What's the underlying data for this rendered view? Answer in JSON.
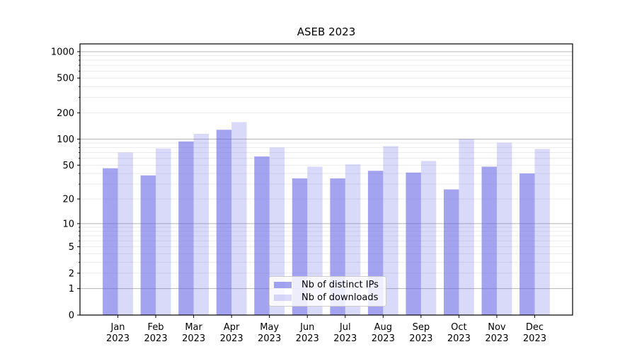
{
  "chart_data": {
    "type": "bar",
    "title": "ASEB 2023",
    "categories": [
      "Jan 2023",
      "Feb 2023",
      "Mar 2023",
      "Apr 2023",
      "May 2023",
      "Jun 2023",
      "Jul 2023",
      "Aug 2023",
      "Sep 2023",
      "Oct 2023",
      "Nov 2023",
      "Dec 2023"
    ],
    "series": [
      {
        "name": "Nb of distinct IPs",
        "values": [
          46,
          38,
          94,
          128,
          63,
          35,
          35,
          43,
          41,
          26,
          48,
          40
        ]
      },
      {
        "name": "Nb of downloads",
        "values": [
          70,
          78,
          115,
          157,
          80,
          48,
          51,
          83,
          56,
          100,
          91,
          77
        ]
      }
    ],
    "xlabel": "",
    "ylabel": "",
    "yscale": "log1p",
    "ylim": [
      0,
      1226
    ],
    "yticks": [
      0,
      1,
      2,
      5,
      10,
      20,
      50,
      100,
      200,
      500,
      1000
    ],
    "grid": "horizontal-major-and-minor",
    "grid_major_values": [
      1,
      10,
      100,
      1000
    ],
    "legend_position": "lower-center"
  },
  "colors": {
    "ips_fill": "rgba(102,102,230,0.60)",
    "downloads_fill": "rgba(102,102,230,0.25)",
    "grid_major": "#b5b5b5",
    "grid_minor": "#e8e8e8",
    "axis": "#000000",
    "text": "#000000",
    "legend_border": "#cccccc",
    "legend_background": "rgba(255,255,255,0.8)"
  }
}
